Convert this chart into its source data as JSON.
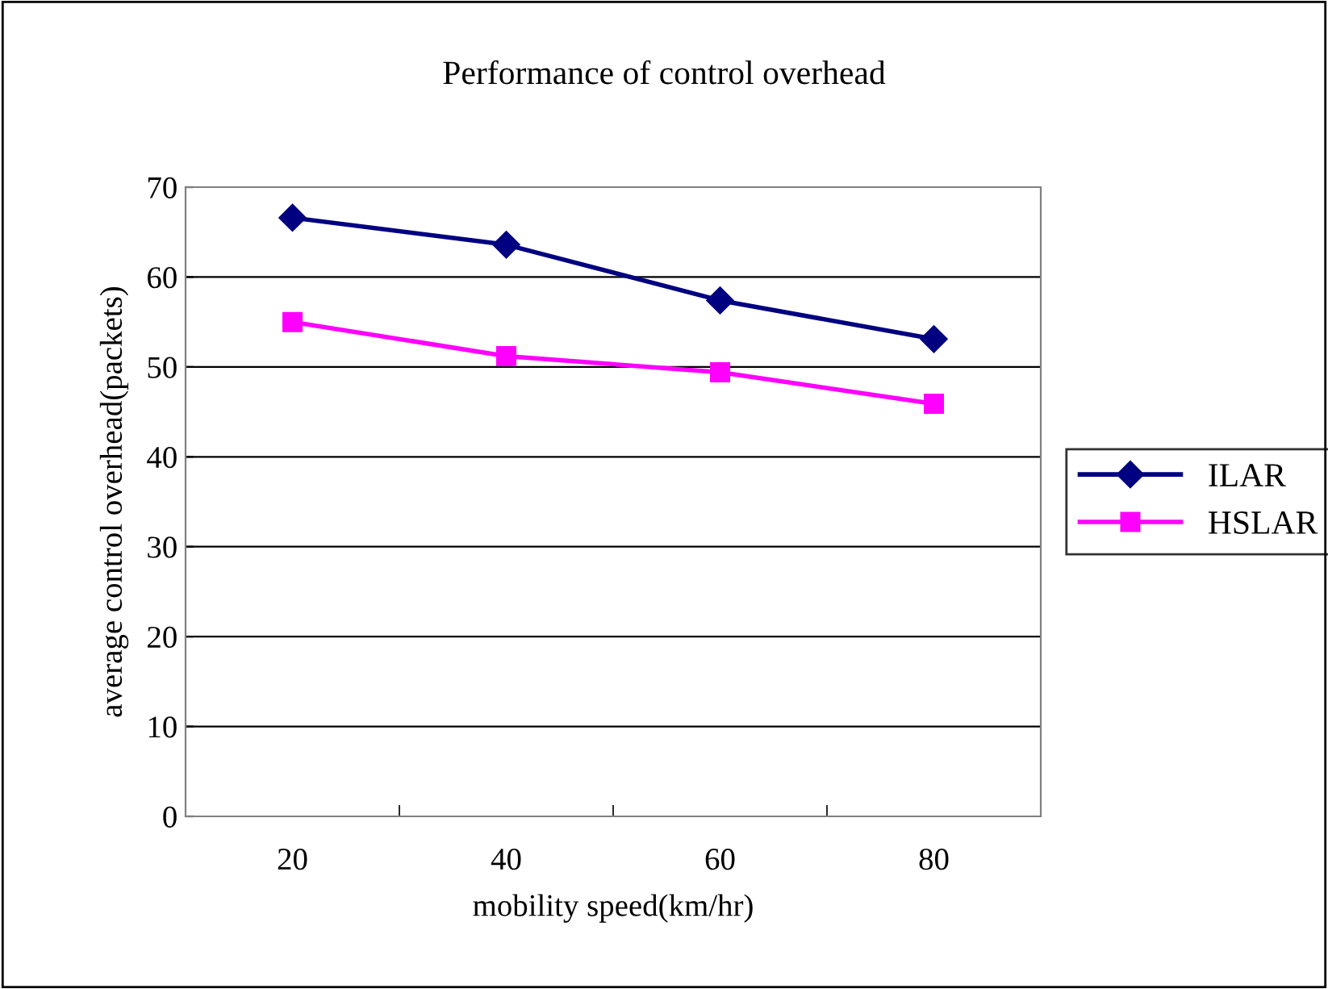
{
  "chart_data": {
    "type": "line",
    "title": "Performance of control overhead",
    "xlabel": "mobility speed(km/hr)",
    "ylabel": "average control overhead(packets)",
    "categories": [
      "20",
      "40",
      "60",
      "80"
    ],
    "series": [
      {
        "name": "ILAR",
        "color": "#000080",
        "marker": "diamond",
        "values": [
          66.6,
          63.6,
          57.4,
          53.1
        ]
      },
      {
        "name": "HSLAR",
        "color": "#ff00ff",
        "marker": "square",
        "values": [
          55.0,
          51.2,
          49.4,
          45.9
        ]
      }
    ],
    "ylim": [
      0,
      70
    ],
    "yticks": [
      0,
      10,
      20,
      30,
      40,
      50,
      60,
      70
    ],
    "grid": "y",
    "legend": "right"
  }
}
